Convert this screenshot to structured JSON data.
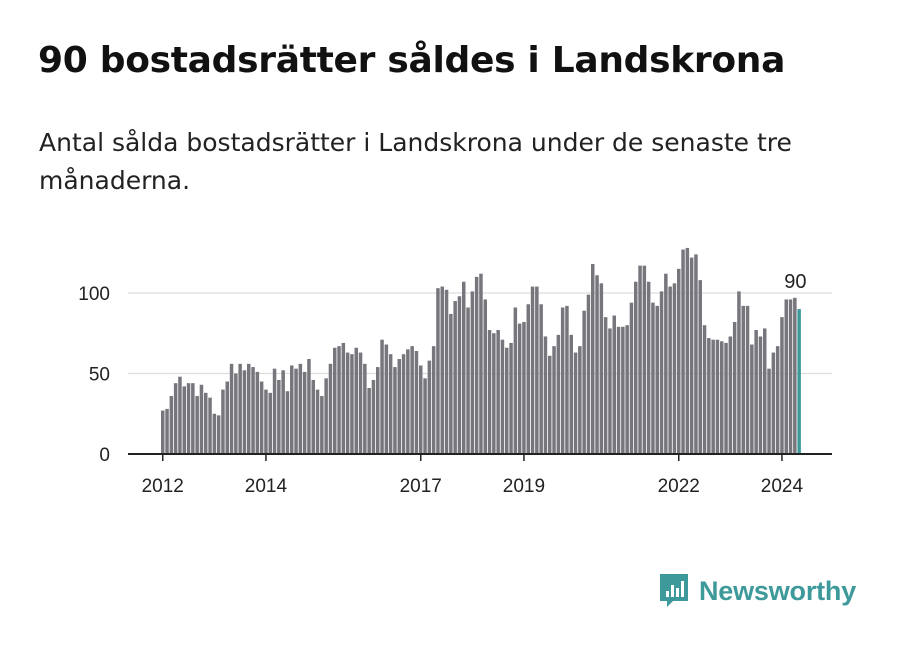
{
  "header": {
    "title": "90 bostadsrätter såldes i Landskrona",
    "subtitle": "Antal sålda bostadsrätter i Landskrona under de senaste tre månaderna."
  },
  "brand": {
    "name": "Newsworthy",
    "color": "#3e9a9a"
  },
  "colors": {
    "bar": "#77767c",
    "highlight": "#3e9a9a",
    "grid": "#dddddd",
    "axis": "#222222"
  },
  "chart_data": {
    "type": "bar",
    "title": "90 bostadsrätter såldes i Landskrona",
    "xlabel": "",
    "ylabel": "",
    "ylim": [
      0,
      130
    ],
    "yticks": [
      0,
      50,
      100
    ],
    "grid": true,
    "start_year": 2012,
    "xtick_labels": [
      "2012",
      "2014",
      "2017",
      "2019",
      "2022",
      "2024"
    ],
    "highlight_label": "90",
    "values": [
      27,
      28,
      36,
      44,
      48,
      42,
      44,
      44,
      36,
      43,
      38,
      35,
      25,
      24,
      40,
      45,
      56,
      50,
      56,
      52,
      56,
      54,
      51,
      45,
      40,
      38,
      53,
      46,
      52,
      39,
      55,
      53,
      56,
      51,
      59,
      46,
      40,
      36,
      47,
      56,
      66,
      67,
      69,
      63,
      62,
      66,
      63,
      56,
      41,
      46,
      54,
      71,
      68,
      62,
      54,
      59,
      62,
      65,
      67,
      64,
      55,
      47,
      58,
      67,
      103,
      104,
      102,
      87,
      95,
      98,
      107,
      91,
      101,
      110,
      112,
      96,
      77,
      75,
      77,
      71,
      66,
      69,
      91,
      81,
      82,
      93,
      104,
      104,
      93,
      73,
      61,
      67,
      74,
      91,
      92,
      74,
      63,
      67,
      89,
      99,
      118,
      111,
      106,
      85,
      78,
      86,
      79,
      79,
      80,
      94,
      107,
      117,
      117,
      107,
      94,
      92,
      101,
      112,
      104,
      106,
      115,
      127,
      128,
      122,
      124,
      108,
      80,
      72,
      71,
      71,
      70,
      69,
      73,
      82,
      101,
      92,
      92,
      68,
      77,
      73,
      78,
      53,
      63,
      67,
      85,
      96,
      96,
      97,
      90
    ]
  }
}
